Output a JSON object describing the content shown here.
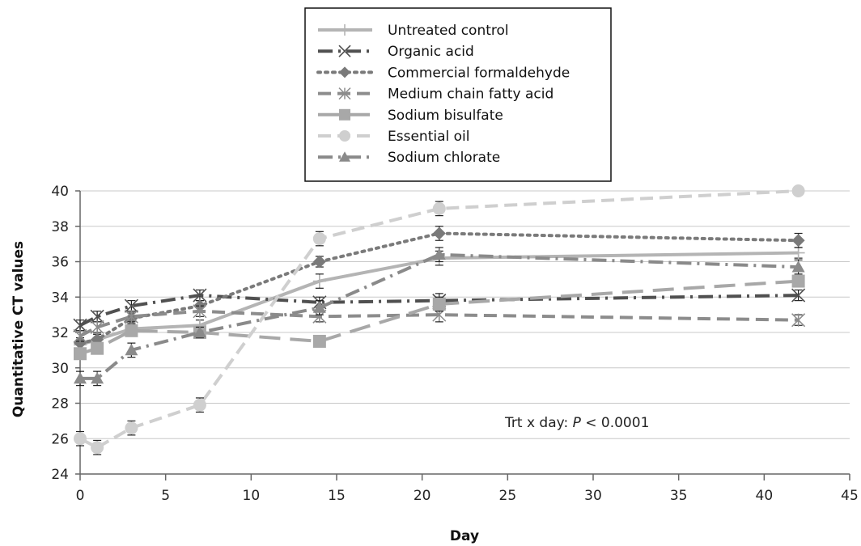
{
  "chart_data": {
    "type": "line",
    "xlabel": "Day",
    "ylabel": "Quantitative CT values",
    "xlim": [
      0,
      45
    ],
    "ylim": [
      24,
      40
    ],
    "xticks": [
      0,
      5,
      10,
      15,
      20,
      25,
      30,
      35,
      40,
      45
    ],
    "yticks": [
      24,
      26,
      28,
      30,
      32,
      34,
      36,
      38,
      40
    ],
    "grid": "horizontal",
    "legend_position": "top-center",
    "x": [
      0,
      1,
      3,
      7,
      14,
      21,
      42
    ],
    "series": [
      {
        "name": "Untreated control",
        "values": [
          31.3,
          31.6,
          32.2,
          32.4,
          34.9,
          36.2,
          36.5
        ],
        "errors": [
          0.3,
          0.3,
          0.3,
          0.3,
          0.4,
          0.4,
          0.3
        ],
        "color": "#b4b4b4",
        "dash": "solid",
        "marker": "plus"
      },
      {
        "name": "Organic acid",
        "values": [
          32.4,
          32.9,
          33.5,
          34.1,
          33.7,
          33.8,
          34.1
        ],
        "errors": [
          0.3,
          0.3,
          0.3,
          0.3,
          0.3,
          0.4,
          0.3
        ],
        "color": "#505050",
        "dash": "dashdot",
        "marker": "x"
      },
      {
        "name": "Commercial formaldehyde",
        "values": [
          31.4,
          31.6,
          32.8,
          33.5,
          36.0,
          37.6,
          37.2
        ],
        "errors": [
          0.3,
          0.3,
          0.3,
          0.3,
          0.3,
          0.4,
          0.4
        ],
        "color": "#7a7a7a",
        "dash": "dotted",
        "marker": "diamond"
      },
      {
        "name": "Medium chain fatty acid",
        "values": [
          31.8,
          32.3,
          32.9,
          33.2,
          32.9,
          33.0,
          32.7
        ],
        "errors": [
          0.3,
          0.3,
          0.3,
          0.3,
          0.3,
          0.4,
          0.3
        ],
        "color": "#8c8c8c",
        "dash": "dashed",
        "marker": "asterisk"
      },
      {
        "name": "Sodium bisulfate",
        "values": [
          30.8,
          31.1,
          32.1,
          32.0,
          31.5,
          33.6,
          34.9
        ],
        "errors": [
          0.3,
          0.3,
          0.3,
          0.3,
          0.3,
          0.4,
          0.3
        ],
        "color": "#a8a8a8",
        "dash": "longdash",
        "marker": "square"
      },
      {
        "name": "Essential oil",
        "values": [
          26.0,
          25.5,
          26.6,
          27.9,
          37.3,
          39.0,
          40.0
        ],
        "errors": [
          0.4,
          0.4,
          0.4,
          0.4,
          0.4,
          0.4,
          0.1
        ],
        "color": "#cfcfcf",
        "dash": "dashed",
        "marker": "circle"
      },
      {
        "name": "Sodium chlorate",
        "values": [
          29.4,
          29.4,
          31.0,
          32.0,
          33.4,
          36.4,
          35.7
        ],
        "errors": [
          0.4,
          0.4,
          0.4,
          0.3,
          0.4,
          0.4,
          0.4
        ],
        "color": "#8a8a8a",
        "dash": "dashdot",
        "marker": "triangle"
      }
    ],
    "annotation": {
      "prefix": "Trt x day: ",
      "italic": "P",
      "suffix": " < 0.0001"
    }
  }
}
